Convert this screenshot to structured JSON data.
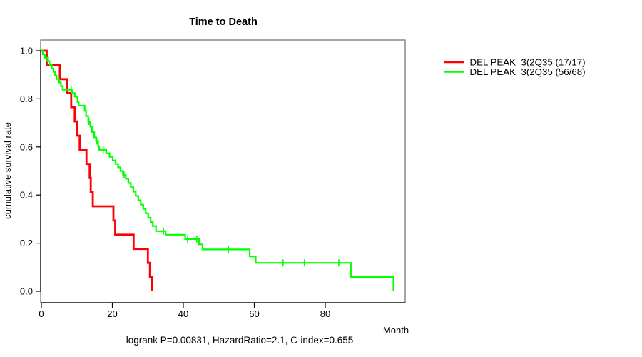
{
  "chart_data": {
    "type": "line",
    "subtype": "kaplan-meier-step",
    "title": "Time to Death",
    "xlabel": "Month",
    "ylabel": "cumulative survival rate",
    "caption": "logrank P=0.00831, HazardRatio=2.1, C-index=0.655",
    "xlim": [
      0,
      102
    ],
    "ylim": [
      0,
      1.0
    ],
    "xticks": [
      "0",
      "20",
      "40",
      "60",
      "80"
    ],
    "yticks": [
      "0.0",
      "0.2",
      "0.4",
      "0.6",
      "0.8",
      "1.0"
    ],
    "grid": false,
    "legend_position": "right-outside",
    "colors": {
      "box": "#808080",
      "axis": "#000000",
      "red_series": "#FF0000",
      "green_series": "#00FF00"
    },
    "series": [
      {
        "name": "DEL PEAK  3(2Q35 (17/17)",
        "events": "17/17",
        "color": "#FF0000",
        "points": [
          [
            0,
            1.0
          ],
          [
            1.5,
            0.941
          ],
          [
            5.2,
            0.882
          ],
          [
            7.2,
            0.824
          ],
          [
            8.4,
            0.765
          ],
          [
            9.4,
            0.706
          ],
          [
            10.1,
            0.647
          ],
          [
            10.8,
            0.588
          ],
          [
            12.7,
            0.529
          ],
          [
            13.6,
            0.471
          ],
          [
            13.9,
            0.412
          ],
          [
            14.5,
            0.353
          ],
          [
            20.3,
            0.294
          ],
          [
            20.8,
            0.235
          ],
          [
            26.0,
            0.176
          ],
          [
            30.0,
            0.118
          ],
          [
            30.6,
            0.059
          ],
          [
            31.2,
            0.0
          ]
        ],
        "censors": []
      },
      {
        "name": "DEL PEAK  3(2Q35 (56/68)",
        "events": "56/68",
        "color": "#00FF00",
        "points": [
          [
            0,
            1.0
          ],
          [
            0.4,
            0.985
          ],
          [
            1.0,
            0.971
          ],
          [
            1.7,
            0.956
          ],
          [
            2.3,
            0.941
          ],
          [
            2.9,
            0.926
          ],
          [
            3.4,
            0.912
          ],
          [
            3.8,
            0.897
          ],
          [
            4.3,
            0.882
          ],
          [
            5.0,
            0.868
          ],
          [
            5.5,
            0.853
          ],
          [
            6.0,
            0.838
          ],
          [
            8.6,
            0.824
          ],
          [
            9.4,
            0.809
          ],
          [
            10.2,
            0.787
          ],
          [
            10.5,
            0.772
          ],
          [
            12.2,
            0.75
          ],
          [
            12.6,
            0.728
          ],
          [
            13.2,
            0.706
          ],
          [
            13.8,
            0.684
          ],
          [
            14.3,
            0.662
          ],
          [
            14.9,
            0.64
          ],
          [
            15.4,
            0.625
          ],
          [
            16.0,
            0.603
          ],
          [
            16.3,
            0.588
          ],
          [
            18.3,
            0.574
          ],
          [
            19.2,
            0.559
          ],
          [
            20.1,
            0.544
          ],
          [
            20.9,
            0.529
          ],
          [
            21.6,
            0.515
          ],
          [
            22.3,
            0.5
          ],
          [
            23.0,
            0.485
          ],
          [
            23.8,
            0.468
          ],
          [
            24.5,
            0.45
          ],
          [
            25.2,
            0.432
          ],
          [
            25.9,
            0.414
          ],
          [
            26.6,
            0.396
          ],
          [
            27.3,
            0.378
          ],
          [
            28.0,
            0.36
          ],
          [
            28.7,
            0.342
          ],
          [
            29.4,
            0.324
          ],
          [
            30.1,
            0.306
          ],
          [
            30.8,
            0.288
          ],
          [
            31.4,
            0.271
          ],
          [
            32.3,
            0.25
          ],
          [
            35.0,
            0.235
          ],
          [
            40.5,
            0.217
          ],
          [
            44.4,
            0.195
          ],
          [
            45.4,
            0.174
          ],
          [
            58.7,
            0.145
          ],
          [
            60.4,
            0.118
          ],
          [
            87.2,
            0.059
          ],
          [
            99.2,
            0.0
          ]
        ],
        "censors": [
          [
            8.4,
            0.838
          ],
          [
            13.4,
            0.706
          ],
          [
            15.6,
            0.625
          ],
          [
            17.4,
            0.588
          ],
          [
            23.3,
            0.485
          ],
          [
            34.4,
            0.25
          ],
          [
            41.2,
            0.217
          ],
          [
            43.8,
            0.217
          ],
          [
            52.7,
            0.174
          ],
          [
            68.1,
            0.118
          ],
          [
            74.1,
            0.118
          ],
          [
            83.8,
            0.118
          ]
        ]
      }
    ]
  }
}
